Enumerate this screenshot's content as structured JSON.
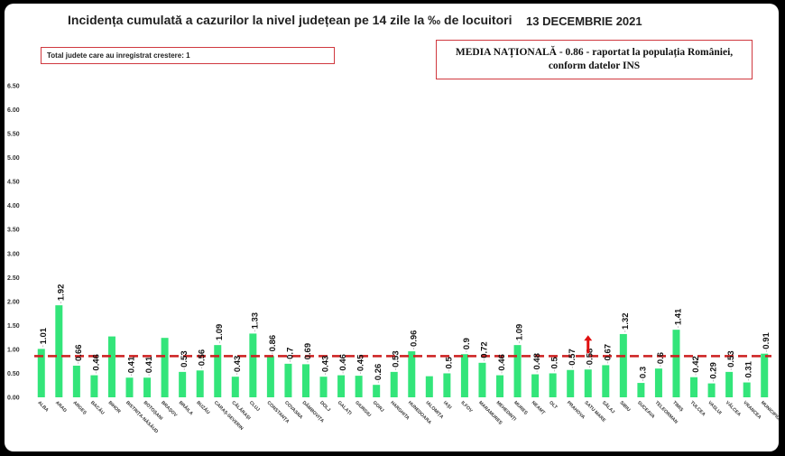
{
  "header": {
    "title": "Incidența cumulată a cazurilor la nivel județean pe 14 zile la ‰ de locuitori",
    "date": "13 DECEMBRIE 2021"
  },
  "info_box": {
    "text": "Total judete care au inregistrat crestere: 1"
  },
  "national_box": {
    "line1": "MEDIA NAȚIONALĂ - 0.86 -  raportat la populația României,",
    "line2": "conform datelor INS"
  },
  "colors": {
    "bar": "#33e57a",
    "average_line": "#cc1f1f",
    "box_border": "#d0383f",
    "increase_arrow": "#e01010"
  },
  "chart_data": {
    "type": "bar",
    "title": "Incidența cumulată a cazurilor la nivel județean pe 14 zile la ‰ de locuitori",
    "xlabel": "",
    "ylabel": "",
    "ylim": [
      0,
      6.5
    ],
    "ytick_step": 0.5,
    "ytick_labels": [
      "0.00",
      "0.50",
      "1.00",
      "1.50",
      "2.00",
      "2.50",
      "3.00",
      "3.50",
      "4.00",
      "4.50",
      "5.00",
      "5.50",
      "6.00",
      "6.50"
    ],
    "grid": false,
    "categories": [
      "ALBA",
      "ARAD",
      "ARGEȘ",
      "BACĂU",
      "BIHOR",
      "BISTRIȚA-NĂSĂUD",
      "BOTOȘANI",
      "BRAȘOV",
      "BRĂILA",
      "BUZĂU",
      "CARAȘ-SEVERIN",
      "CĂLĂRAȘI",
      "CLUJ",
      "CONSTANȚA",
      "COVASNA",
      "DÂMBOVIȚA",
      "DOLJ",
      "GALAȚI",
      "GIURGIU",
      "GORJ",
      "HARGHITA",
      "HUNEDOARA",
      "IALOMIȚA",
      "IAȘI",
      "ILFOV",
      "MARAMUREȘ",
      "MEHEDINȚI",
      "MUREȘ",
      "NEAMȚ",
      "OLT",
      "PRAHOVA",
      "SATU MARE",
      "SĂLAJ",
      "SIBIU",
      "SUCEAVA",
      "TELEORMAN",
      "TIMIȘ",
      "TULCEA",
      "VASLUI",
      "VÂLCEA",
      "VRANCEA",
      "MUNICIPIUL..."
    ],
    "values": [
      1.01,
      1.92,
      0.66,
      0.46,
      1.27,
      0.41,
      0.41,
      1.24,
      0.53,
      0.56,
      1.09,
      0.43,
      1.33,
      0.86,
      0.7,
      0.69,
      0.43,
      0.46,
      0.45,
      0.26,
      0.53,
      0.96,
      0.44,
      0.5,
      0.9,
      0.72,
      0.46,
      1.09,
      0.48,
      0.5,
      0.57,
      0.58,
      0.67,
      1.32,
      0.3,
      0.6,
      1.41,
      0.42,
      0.29,
      0.53,
      0.31,
      0.91
    ],
    "value_labels": [
      "1.01",
      "1.92",
      "0.66",
      "0.46",
      "1.27",
      "0.41",
      "0.41",
      "1.24",
      "0.53",
      "0.56",
      "1.09",
      "0.43",
      "1.33",
      "0.86",
      "0.7",
      "0.69",
      "0.43",
      "0.46",
      "0.45",
      "0.26",
      "0.53",
      "0.96",
      "0.44",
      "0.5",
      "0.9",
      "0.72",
      "0.46",
      "1.09",
      "0.48",
      "0.5",
      "0.57",
      "0.58",
      "0.67",
      "1.32",
      "0.3",
      "0.6",
      "1.41",
      "0.42",
      "0.29",
      "0.53",
      "0.31",
      "0.91"
    ],
    "labeled_indices": [
      0,
      1,
      2,
      3,
      5,
      6,
      8,
      9,
      10,
      11,
      12,
      13,
      14,
      15,
      16,
      17,
      18,
      19,
      20,
      21,
      23,
      24,
      25,
      26,
      27,
      28,
      29,
      30,
      31,
      32,
      33,
      34,
      35,
      36,
      37,
      38,
      39,
      40,
      41
    ],
    "average": 0.86,
    "increase_indices": [
      31
    ]
  }
}
